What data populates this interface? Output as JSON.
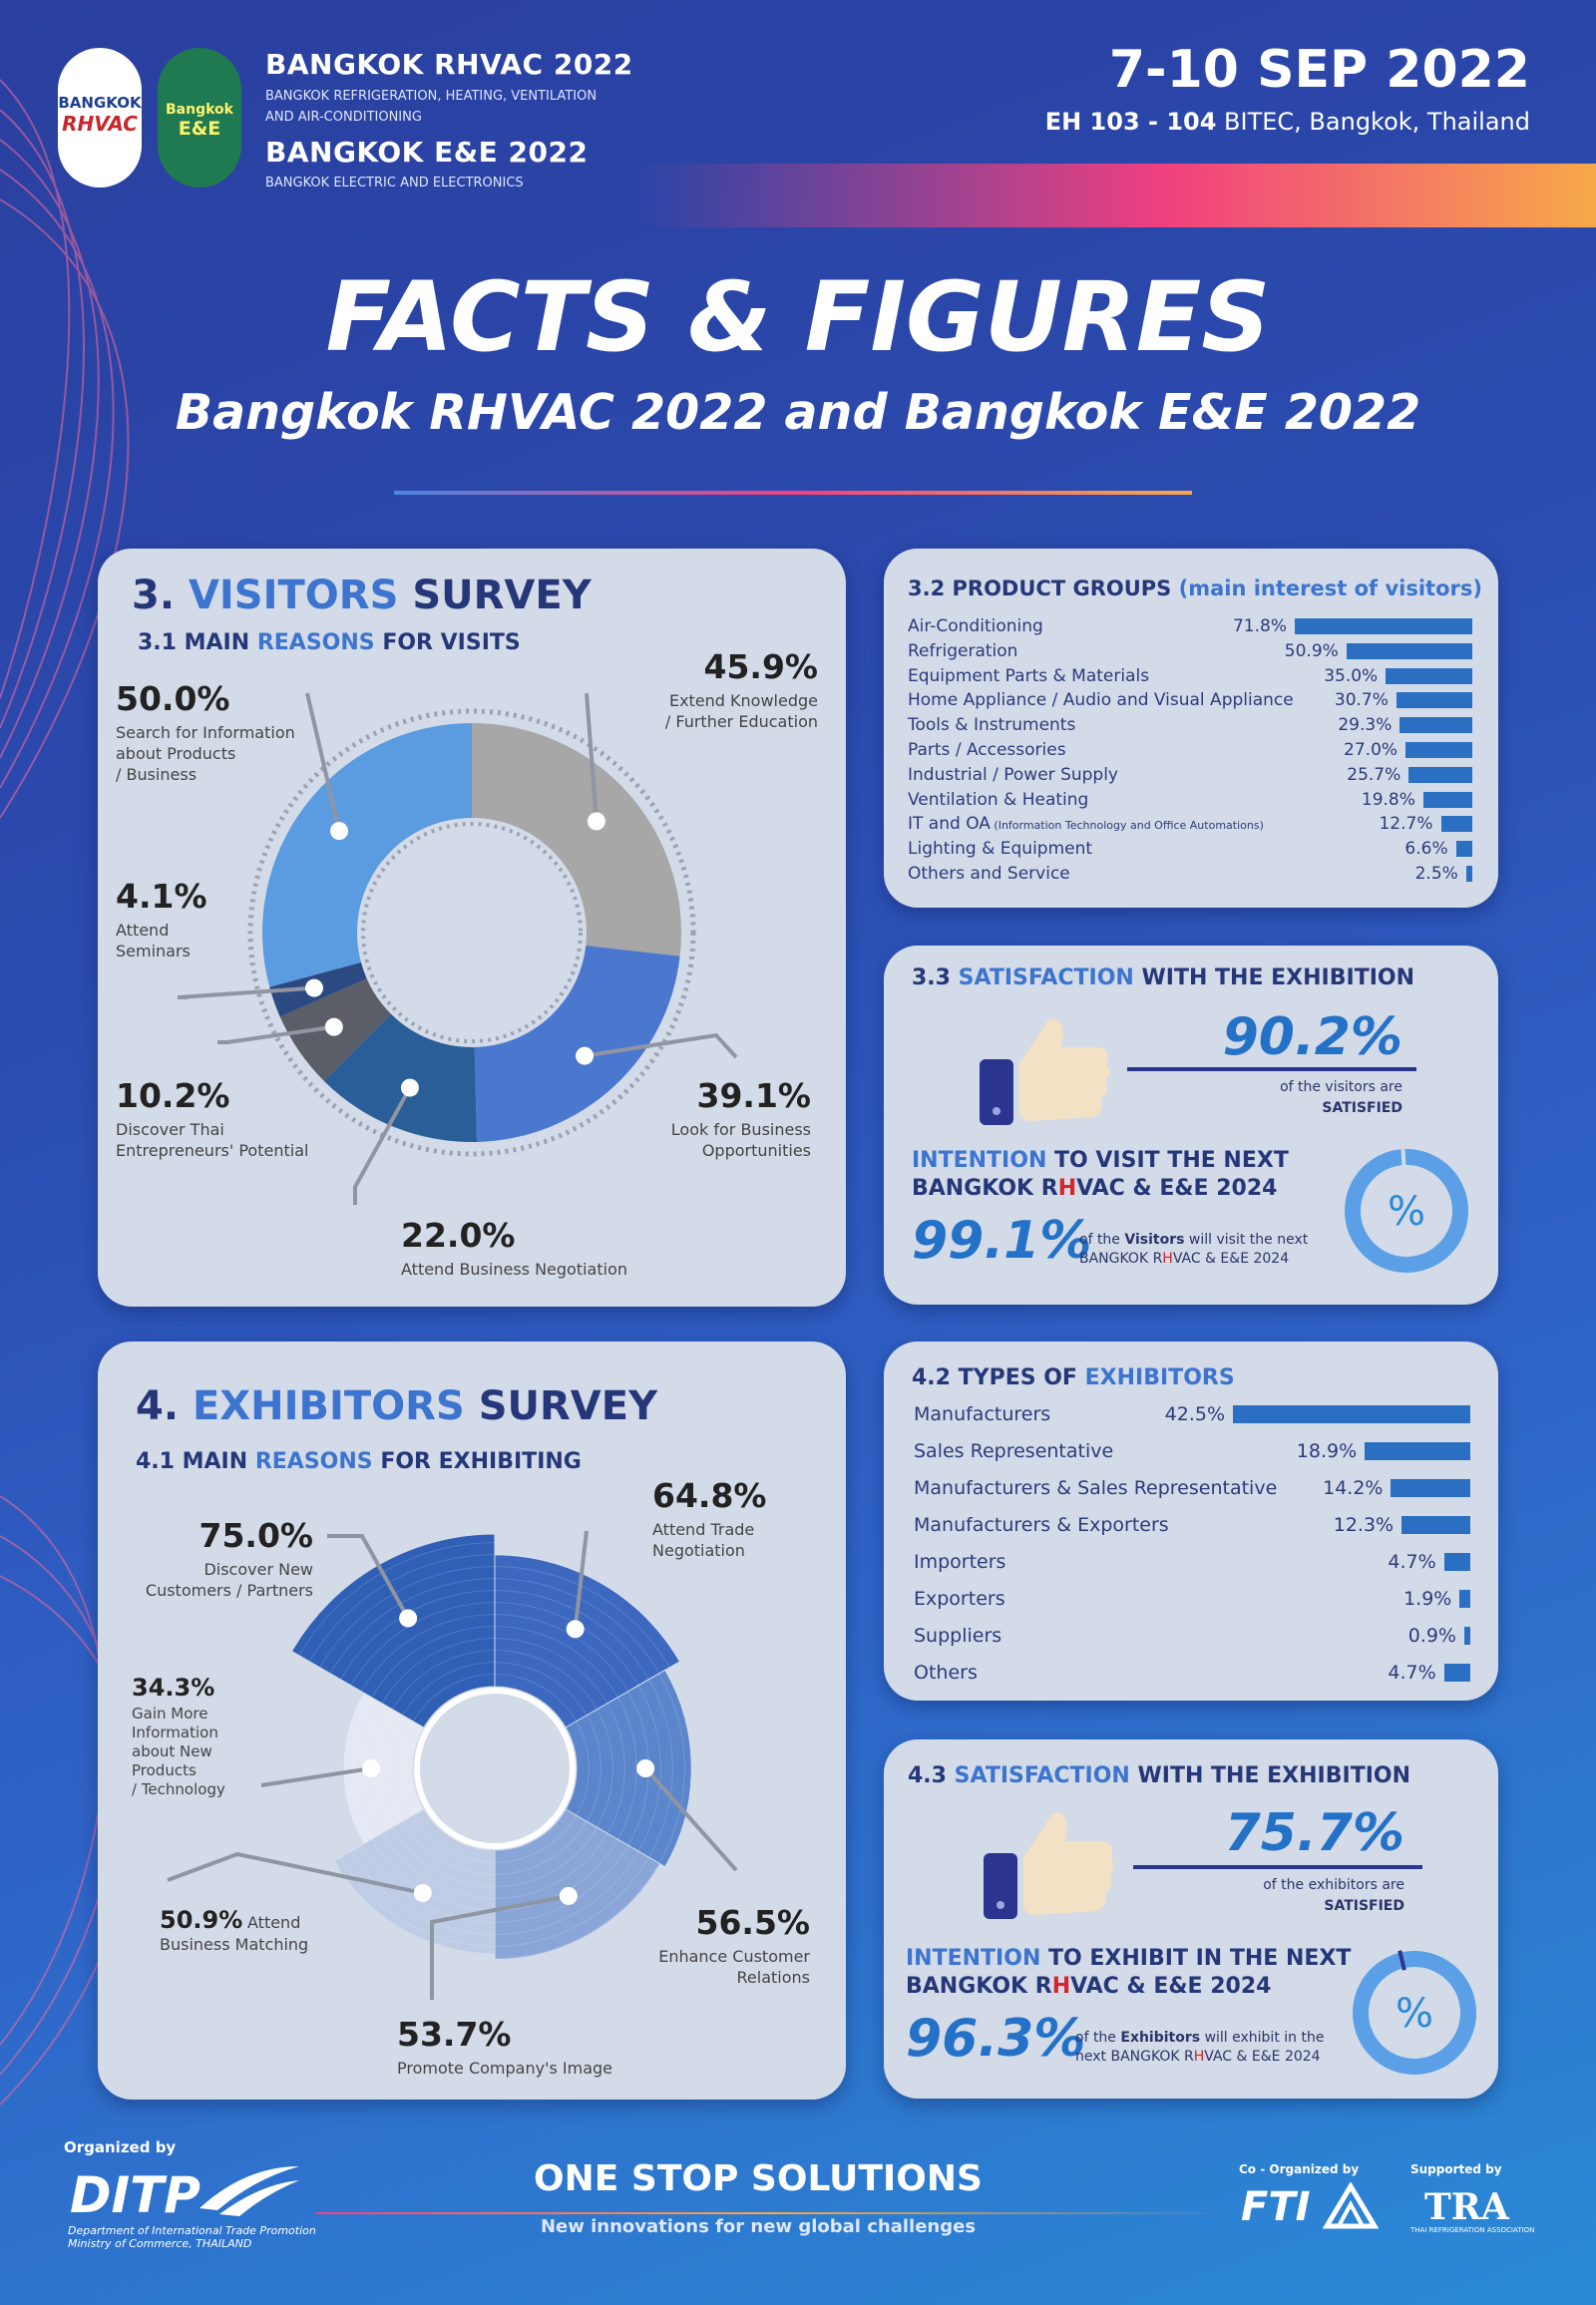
{
  "header": {
    "logo_rhvac": [
      "BANGKOK",
      "RHVAC"
    ],
    "logo_ee": [
      "Bangkok",
      "E&E"
    ],
    "rhvac_title": "BANGKOK RHVAC 2022",
    "rhvac_sub1": "BANGKOK REFRIGERATION, HEATING, VENTILATION",
    "rhvac_sub2": "AND AIR-CONDITIONING",
    "ee_title": "BANGKOK E&E 2022",
    "ee_sub": "BANGKOK ELECTRIC AND ELECTRONICS",
    "date": "7-10 SEP 2022",
    "venue_bold": "EH 103 - 104",
    "venue_rest": " BITEC, Bangkok, Thailand"
  },
  "title": "FACTS & FIGURES",
  "subtitle": "Bangkok RHVAC 2022 and Bangkok E&E 2022",
  "visitors": {
    "num": "3.",
    "word1": "VISITORS",
    "word2": "SURVEY",
    "sub_a": "3.1 MAIN",
    "sub_b": "REASONS",
    "sub_c": "FOR VISITS"
  },
  "exhibitors": {
    "num": "4.",
    "word1": "EXHIBITORS",
    "word2": "SURVEY",
    "sub_a": "4.1 MAIN",
    "sub_b": "REASONS",
    "sub_c": "FOR EXHIBITING"
  },
  "product_groups": {
    "title_a": "3.2 PRODUCT GROUPS",
    "title_b": "(main interest of visitors)"
  },
  "types": {
    "title_a": "4.2  TYPES OF",
    "title_b": "EXHIBITORS"
  },
  "sat_visitors": {
    "title_a": "3.3",
    "title_b": "SATISFACTION",
    "title_c": "WITH THE EXHIBITION",
    "value": "90.2%",
    "desc1": "of the visitors are",
    "desc2": "SATISFIED",
    "int_a": "INTENTION",
    "int_b": "TO VISIT THE NEXT",
    "int_line2_a": "BANGKOK R",
    "int_line2_h": "H",
    "int_line2_b": "VAC & E&E 2024",
    "int_value": "99.1%",
    "int_desc_a": "of the",
    "int_desc_b": "Visitors",
    "int_desc_c": "will visit the next",
    "int_desc2_a": "BANGKOK R",
    "int_desc2_h": "H",
    "int_desc2_b": "VAC & E&E 2024",
    "int_fraction": 0.991,
    "pct_symbol": "%"
  },
  "sat_exhibitors": {
    "title_a": "4.3",
    "title_b": "SATISFACTION",
    "title_c": "WITH THE EXHIBITION",
    "value": "75.7%",
    "desc1": "of the exhibitors  are",
    "desc2": "SATISFIED",
    "int_a": "INTENTION",
    "int_b": "TO EXHIBIT IN THE NEXT",
    "int_line2_a": "BANGKOK R",
    "int_line2_h": "H",
    "int_line2_b": "VAC & E&E 2024",
    "int_value": "96.3%",
    "int_desc_a": "of the",
    "int_desc_b": "Exhibitors",
    "int_desc_c": "will exhibit in the",
    "int_desc2_a": "next BANGKOK R",
    "int_desc2_h": "H",
    "int_desc2_b": "VAC & E&E 2024",
    "int_fraction": 0.963,
    "pct_symbol": "%"
  },
  "footer": {
    "organized": "Organized by",
    "ditp": "DITP",
    "ditp_sub1": "Department of International Trade Promotion",
    "ditp_sub2": "Ministry of Commerce, THAILAND",
    "slogan": "ONE STOP SOLUTIONS",
    "slogan_sub": "New innovations for new global challenges",
    "coorg": "Co - Organized by",
    "fti": "FTI",
    "supported": "Supported by",
    "tra": "TRA",
    "tra_sub": "THAI REFRIGERATION ASSOCIATION"
  },
  "chart_data": [
    {
      "type": "pie",
      "title": "3.1 MAIN REASONS FOR VISITS",
      "categories": [
        "Extend Knowledge / Further Education",
        "Look for Business Opportunities",
        "Attend Business Negotiation",
        "Discover Thai Entrepreneurs' Potential",
        "Attend Seminars",
        "Search for Information about Products / Business"
      ],
      "values": [
        45.9,
        39.1,
        22.0,
        10.2,
        4.1,
        50.0
      ],
      "labels": [
        "45.9%",
        "39.1%",
        "22.0%",
        "10.2%",
        "4.1%",
        "50.0%"
      ],
      "label_lines": [
        [
          "Extend Knowledge",
          "/ Further Education"
        ],
        [
          "Look for Business",
          "Opportunities"
        ],
        [
          "Attend Business Negotiation"
        ],
        [
          "Discover Thai",
          "Entrepreneurs' Potential"
        ],
        [
          "Attend",
          "Seminars"
        ],
        [
          "Search for Information",
          "about Products",
          "/ Business"
        ]
      ],
      "colors": [
        "#a7a7a7",
        "#4a78cf",
        "#2a5e98",
        "#5b5e66",
        "#2b4a82",
        "#5b9be0"
      ]
    },
    {
      "type": "pie",
      "title": "4.1 MAIN REASONS FOR EXHIBITING",
      "categories": [
        "Attend Trade Negotiation",
        "Enhance Customer Relations",
        "Promote Company's Image",
        "Attend Business Matching",
        "Gain More Information about New Products / Technology",
        "Discover New Customers / Partners"
      ],
      "values": [
        64.8,
        56.5,
        53.7,
        50.9,
        34.3,
        75.0
      ],
      "labels": [
        "64.8%",
        "56.5%",
        "53.7%",
        "50.9%",
        "34.3%",
        "75.0%"
      ],
      "label_lines": [
        [
          "Attend Trade",
          "Negotiation"
        ],
        [
          "Enhance Customer",
          "Relations"
        ],
        [
          "Promote Company's Image"
        ],
        [
          "Attend",
          "Business Matching"
        ],
        [
          "Gain More",
          "Information",
          "about New",
          "Products",
          "/ Technology"
        ],
        [
          "Discover New",
          "Customers / Partners"
        ]
      ],
      "colors": [
        "#3d68bf",
        "#5c86cc",
        "#8aa6d8",
        "#bfcce6",
        "#e4e9f4",
        "#3060b5"
      ]
    },
    {
      "type": "bar",
      "title": "3.2 PRODUCT GROUPS (main interest of visitors)",
      "categories": [
        "Air-Conditioning",
        "Refrigeration",
        "Equipment Parts & Materials",
        "Home Appliance / Audio and Visual Appliance",
        "Tools & Instruments",
        "Parts / Accessories",
        "Industrial / Power Supply",
        "Ventilation & Heating",
        "IT and OA",
        "Lighting & Equipment",
        "Others and Service"
      ],
      "category_note": [
        "",
        "",
        "",
        "",
        "",
        "",
        "",
        "",
        "(Information Technology and Office Automations)",
        "",
        ""
      ],
      "values": [
        71.8,
        50.9,
        35.0,
        30.7,
        29.3,
        27.0,
        25.7,
        19.8,
        12.7,
        6.6,
        2.5
      ],
      "labels": [
        "71.8%",
        "50.9%",
        "35.0%",
        "30.7%",
        "29.3%",
        "27.0%",
        "25.7%",
        "19.8%",
        "12.7%",
        "6.6%",
        "2.5%"
      ]
    },
    {
      "type": "bar",
      "title": "4.2 TYPES OF EXHIBITORS",
      "categories": [
        "Manufacturers",
        "Sales Representative",
        "Manufacturers & Sales Representative",
        "Manufacturers & Exporters",
        "Importers",
        "Exporters",
        "Suppliers",
        "Others"
      ],
      "values": [
        42.5,
        18.9,
        14.2,
        12.3,
        4.7,
        1.9,
        0.9,
        4.7
      ],
      "labels": [
        "42.5%",
        "18.9%",
        "14.2%",
        "12.3%",
        "4.7%",
        "1.9%",
        "0.9%",
        "4.7%"
      ]
    }
  ]
}
